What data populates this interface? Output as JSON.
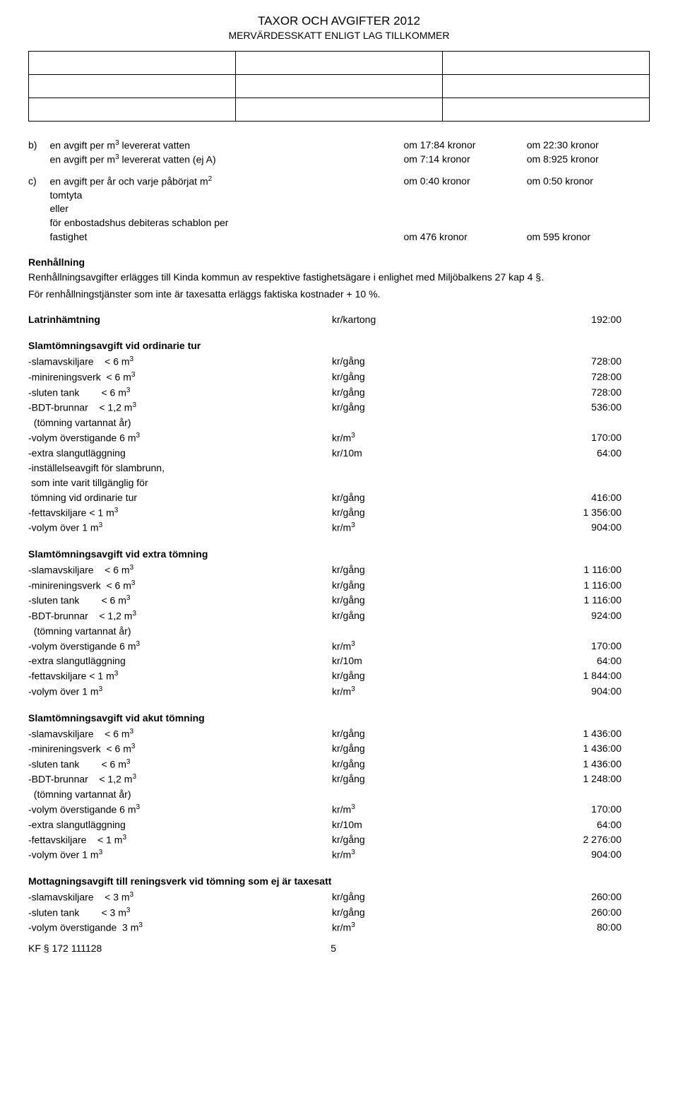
{
  "header": {
    "title": "TAXOR OCH AVGIFTER 2012",
    "subtitle": "MERVÄRDESSKATT ENLIGT LAG TILLKOMMER"
  },
  "section_b": {
    "marker": "b)",
    "rows": [
      {
        "descr": "en avgift per m³ levererat vatten",
        "mid": "om 17:84 kronor",
        "right": "om 22:30 kronor"
      },
      {
        "descr": "en avgift per m³ levererat vatten (ej A)",
        "mid": "om  7:14 kronor",
        "right": "om 8:925 kronor"
      }
    ]
  },
  "section_c": {
    "marker": "c)",
    "rows": [
      {
        "descr": "en avgift per år och varje påbörjat m²",
        "mid": "om 0:40 kronor",
        "right": "om 0:50 kronor"
      },
      {
        "descr": "tomtyta",
        "mid": "",
        "right": ""
      },
      {
        "descr": "eller",
        "mid": "",
        "right": ""
      },
      {
        "descr": "för enbostadshus debiteras schablon per",
        "mid": "",
        "right": ""
      },
      {
        "descr": "fastighet",
        "mid": "om 476 kronor",
        "right": "om 595 kronor"
      }
    ]
  },
  "renhallning": {
    "title": "Renhållning",
    "text1": "Renhållningsavgifter erlägges till Kinda kommun av respektive fastighetsägare i enlighet med Miljöbalkens 27 kap 4 §.",
    "text2": "För renhållningstjänster som inte är taxesatta erläggs faktiska kostnader + 10 %."
  },
  "latrin": {
    "label": "Latrinhämtning",
    "unit": "kr/kartong",
    "value": "192:00"
  },
  "slamtomning_ordinarie": {
    "title": "Slamtömningsavgift vid ordinarie tur",
    "rows": [
      {
        "label": "-slamavskiljare    < 6 m³",
        "unit": "kr/gång",
        "value": "728:00"
      },
      {
        "label": "-minireningsverk  < 6 m³",
        "unit": "kr/gång",
        "value": "728:00"
      },
      {
        "label": "-sluten tank        < 6 m³",
        "unit": "kr/gång",
        "value": "728:00"
      },
      {
        "label": "-BDT-brunnar    < 1,2 m³",
        "unit": "kr/gång",
        "value": "536:00"
      },
      {
        "label": "  (tömning vartannat år)",
        "unit": "",
        "value": ""
      },
      {
        "label": "-volym överstigande 6 m³",
        "unit": "kr/m³",
        "value": "170:00"
      },
      {
        "label": "-extra slangutläggning",
        "unit": "kr/10m",
        "value": "64:00"
      },
      {
        "label": "-inställelseavgift för slambrunn,",
        "unit": "",
        "value": ""
      },
      {
        "label": " som inte varit tillgänglig för",
        "unit": "",
        "value": ""
      },
      {
        "label": " tömning vid ordinarie tur",
        "unit": "kr/gång",
        "value": "416:00"
      },
      {
        "label": "-fettavskiljare < 1 m³",
        "unit": "kr/gång",
        "value": "1 356:00"
      },
      {
        "label": "-volym över 1 m³",
        "unit": "kr/m³",
        "value": "904:00"
      }
    ]
  },
  "slamtomning_extra": {
    "title": "Slamtömningsavgift vid extra tömning",
    "rows": [
      {
        "label": "-slamavskiljare    < 6 m³",
        "unit": "kr/gång",
        "value": "1 116:00"
      },
      {
        "label": "-minireningsverk  < 6 m³",
        "unit": "kr/gång",
        "value": "1 116:00"
      },
      {
        "label": "-sluten tank        < 6 m³",
        "unit": "kr/gång",
        "value": "1 116:00"
      },
      {
        "label": "-BDT-brunnar    < 1,2 m³",
        "unit": "kr/gång",
        "value": "924:00"
      },
      {
        "label": "  (tömning vartannat år)",
        "unit": "",
        "value": ""
      },
      {
        "label": "-volym överstigande 6 m³",
        "unit": "kr/m³",
        "value": "170:00"
      },
      {
        "label": "-extra slangutläggning",
        "unit": "kr/10m",
        "value": "64:00"
      },
      {
        "label": "-fettavskiljare < 1 m³",
        "unit": "kr/gång",
        "value": "1 844:00"
      },
      {
        "label": "-volym över 1 m³",
        "unit": "kr/m³",
        "value": "904:00"
      }
    ]
  },
  "slamtomning_akut": {
    "title": "Slamtömningsavgift vid akut tömning",
    "rows": [
      {
        "label": "-slamavskiljare    < 6 m³",
        "unit": "kr/gång",
        "value": "1 436:00"
      },
      {
        "label": "-minireningsverk  < 6 m³",
        "unit": "kr/gång",
        "value": "1 436:00"
      },
      {
        "label": "-sluten tank        < 6 m³",
        "unit": "kr/gång",
        "value": "1 436:00"
      },
      {
        "label": "-BDT-brunnar    < 1,2 m³",
        "unit": "kr/gång",
        "value": "1 248:00"
      },
      {
        "label": "  (tömning vartannat år)",
        "unit": "",
        "value": ""
      },
      {
        "label": "-volym överstigande 6 m³",
        "unit": "kr/m³",
        "value": "170:00"
      },
      {
        "label": "-extra slangutläggning",
        "unit": "kr/10m",
        "value": "64:00"
      },
      {
        "label": "-fettavskiljare    < 1 m³",
        "unit": "kr/gång",
        "value": "2 276:00"
      },
      {
        "label": "-volym över 1 m³",
        "unit": "kr/m³",
        "value": "904:00"
      }
    ]
  },
  "mottagning": {
    "title": "Mottagningsavgift till reningsverk vid tömning som ej är taxesatt",
    "rows": [
      {
        "label": "-slamavskiljare    < 3 m³",
        "unit": "kr/gång",
        "value": "260:00"
      },
      {
        "label": "-sluten tank        < 3 m³",
        "unit": "kr/gång",
        "value": "260:00"
      },
      {
        "label": "-volym överstigande  3 m³",
        "unit": "kr/m³",
        "value": "80:00"
      }
    ]
  },
  "footer": {
    "left": "KF § 172 111128",
    "page": "5"
  }
}
